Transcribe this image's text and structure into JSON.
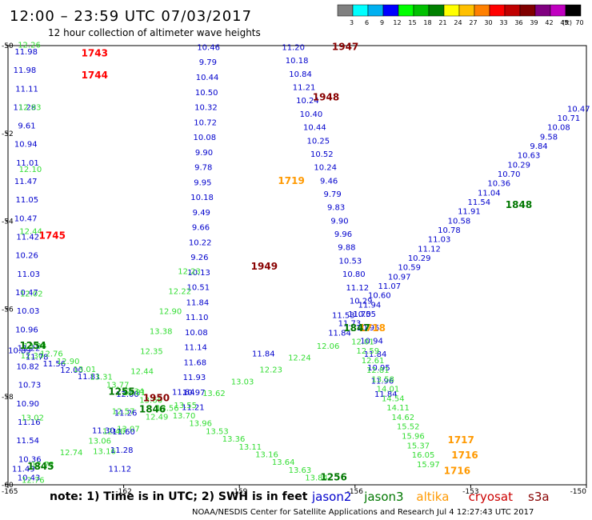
{
  "header": {
    "title": "12:00 – 23:59 UTC 07/03/2017",
    "subtitle": "12 hour collection of altimeter wave heights"
  },
  "colorbar": {
    "unit": "(ft)",
    "levels": [
      {
        "label": "3",
        "color": "#808080"
      },
      {
        "label": "6",
        "color": "#00ffff"
      },
      {
        "label": "9",
        "color": "#00b0f0"
      },
      {
        "label": "12",
        "color": "#0000ff"
      },
      {
        "label": "15",
        "color": "#00ff00"
      },
      {
        "label": "18",
        "color": "#00c000"
      },
      {
        "label": "21",
        "color": "#008000"
      },
      {
        "label": "24",
        "color": "#ffff00"
      },
      {
        "label": "27",
        "color": "#ffc000"
      },
      {
        "label": "30",
        "color": "#ff8000"
      },
      {
        "label": "33",
        "color": "#ff0000"
      },
      {
        "label": "36",
        "color": "#c00000"
      },
      {
        "label": "39",
        "color": "#800000"
      },
      {
        "label": "42",
        "color": "#800080"
      },
      {
        "label": "45",
        "color": "#c000c0"
      },
      {
        "label": "70",
        "color": "#000000"
      }
    ]
  },
  "map": {
    "lon_range": [
      -165,
      -150
    ],
    "lat_range": [
      -60,
      -50
    ],
    "x_ticks": [
      "-165",
      "-162",
      "-159",
      "-156",
      "-153",
      "-150"
    ],
    "y_ticks": [
      "-50",
      "-52",
      "-54",
      "-56",
      "-58",
      "-60"
    ]
  },
  "satellites": [
    {
      "name": "jason2",
      "color": "#0000cc"
    },
    {
      "name": "jason3",
      "color": "#007700"
    },
    {
      "name": "altika",
      "color": "#ff9900"
    },
    {
      "name": "cryosat",
      "color": "#cc0000"
    },
    {
      "name": "s3a",
      "color": "#880000"
    }
  ],
  "times": [
    {
      "label": "1743",
      "lon": -163.1,
      "lat": -50.25,
      "color": "#ff0000"
    },
    {
      "label": "1744",
      "lon": -163.1,
      "lat": -50.75,
      "color": "#ff0000"
    },
    {
      "label": "1745",
      "lon": -164.2,
      "lat": -54.4,
      "color": "#ff0000"
    },
    {
      "label": "1947",
      "lon": -156.6,
      "lat": -50.1,
      "color": "#880000"
    },
    {
      "label": "1948",
      "lon": -157.1,
      "lat": -51.25,
      "color": "#880000"
    },
    {
      "label": "1949",
      "lon": -158.7,
      "lat": -55.1,
      "color": "#880000"
    },
    {
      "label": "1950",
      "lon": -161.5,
      "lat": -58.1,
      "color": "#880000"
    },
    {
      "label": "1719",
      "lon": -158.0,
      "lat": -53.15,
      "color": "#ff9900"
    },
    {
      "label": "1718",
      "lon": -155.9,
      "lat": -56.5,
      "color": "#ff9900"
    },
    {
      "label": "1717",
      "lon": -153.6,
      "lat": -59.05,
      "color": "#ff9900"
    },
    {
      "label": "1716",
      "lon": -153.5,
      "lat": -59.4,
      "color": "#ff9900"
    },
    {
      "label": "1716",
      "lon": -153.7,
      "lat": -59.75,
      "color": "#ff9900"
    },
    {
      "label": "1848",
      "lon": -152.1,
      "lat": -53.7,
      "color": "#007700"
    },
    {
      "label": "1847",
      "lon": -156.3,
      "lat": -56.5,
      "color": "#007700"
    },
    {
      "label": "1846",
      "lon": -161.6,
      "lat": -58.35,
      "color": "#007700"
    },
    {
      "label": "1845",
      "lon": -164.5,
      "lat": -59.65,
      "color": "#007700"
    },
    {
      "label": "1255",
      "lon": -162.4,
      "lat": -57.95,
      "color": "#007700"
    },
    {
      "label": "1254",
      "lon": -164.7,
      "lat": -56.9,
      "color": "#007700"
    },
    {
      "label": "1256",
      "lon": -156.9,
      "lat": -59.9,
      "color": "#007700"
    }
  ],
  "tracks": [
    {
      "satellite": "jason2",
      "color": "#0000cc",
      "start": [
        -164.55,
        -50.2
      ],
      "end": [
        -164.45,
        -59.9
      ],
      "values": [
        "11.98",
        "11.98",
        "11.11",
        "11.28",
        "9.61",
        "10.94",
        "11.01",
        "11.47",
        "11.05",
        "10.47",
        "11.42",
        "10.26",
        "11.03",
        "10.47",
        "10.03",
        "10.96",
        "11.22",
        "10.82",
        "10.73",
        "10.90",
        "11.16",
        "11.54",
        "10.36",
        "10.43"
      ],
      "offsets": [
        0.02,
        -0.02,
        0.03,
        -0.03,
        0.02,
        -0.01,
        0.03,
        -0.02,
        0.01,
        -0.03,
        0.02,
        -0.01,
        0.03,
        -0.02,
        0.01,
        -0.03,
        0.02,
        -0.01,
        0.03,
        -0.02,
        0.01,
        -0.03,
        0.02,
        -0.01
      ]
    },
    {
      "satellite": "jason3",
      "color": "#33dd33",
      "start": [
        -164.45,
        -50.05
      ],
      "end": [
        -164.35,
        -59.95
      ],
      "values": [
        "12.26",
        "12.93",
        "12.10",
        "12.44",
        "12.02",
        "12.30",
        "13.02",
        "12.76"
      ],
      "offsets": [
        0,
        0,
        0,
        0,
        0,
        0,
        0,
        0
      ]
    },
    {
      "satellite": "jason2",
      "color": "#0000cc",
      "start": [
        -159.8,
        -50.1
      ],
      "end": [
        -160.2,
        -58.3
      ],
      "values": [
        "10.46",
        "9.79",
        "10.44",
        "10.50",
        "10.32",
        "10.72",
        "10.08",
        "9.90",
        "9.78",
        "9.95",
        "10.18",
        "9.49",
        "9.66",
        "10.22",
        "9.26",
        "10.13",
        "10.51",
        "11.84",
        "11.10",
        "10.08",
        "11.14",
        "11.68",
        "11.93",
        "10.97",
        "11.21"
      ],
      "offsets": [
        0,
        0,
        0,
        0,
        0,
        0,
        0,
        0,
        0,
        0,
        0,
        0,
        0,
        0,
        0,
        0,
        0,
        0,
        0,
        0,
        0,
        0,
        0,
        0,
        0
      ]
    },
    {
      "satellite": "jason2",
      "color": "#0000cc",
      "start": [
        -157.6,
        -50.1
      ],
      "end": [
        -155.2,
        -58.0
      ],
      "values": [
        "11.20",
        "10.18",
        "10.84",
        "11.21",
        "10.24",
        "10.40",
        "10.44",
        "10.25",
        "10.52",
        "10.24",
        "9.46",
        "9.79",
        "9.83",
        "9.90",
        "9.96",
        "9.88",
        "10.53",
        "10.80",
        "11.12",
        "10.29",
        "10.55",
        "10.95",
        "10.94",
        "11.84",
        "10.95",
        "11.96",
        "11.84"
      ],
      "offsets": [
        0,
        0,
        0,
        0,
        0,
        0,
        0,
        0,
        0,
        0,
        0,
        0,
        0,
        0,
        0,
        0,
        0,
        0,
        0,
        0,
        0,
        0,
        0,
        0,
        0,
        0,
        0
      ]
    },
    {
      "satellite": "jason2",
      "color": "#0000cc",
      "start": [
        -150.2,
        -51.5
      ],
      "end": [
        -156.4,
        -56.6
      ],
      "values": [
        "10.47",
        "10.71",
        "10.08",
        "9.58",
        "9.84",
        "10.63",
        "10.29",
        "10.70",
        "10.36",
        "11.04",
        "11.54",
        "11.91",
        "10.58",
        "10.78",
        "11.03",
        "11.12",
        "10.29",
        "10.59",
        "10.97",
        "11.07",
        "10.60",
        "11.94",
        "11.70",
        "11.73",
        "11.84"
      ],
      "offsets": [
        0,
        0,
        0,
        0,
        0,
        0,
        0,
        0,
        0,
        0,
        0,
        0,
        0,
        0,
        0,
        0,
        0,
        0,
        0,
        0,
        0,
        0,
        0,
        0,
        0
      ]
    },
    {
      "satellite": "jason3",
      "color": "#33dd33",
      "start": [
        -160.3,
        -55.2
      ],
      "end": [
        -162.5,
        -59.3
      ],
      "values": [
        "12.23",
        "12.22",
        "12.90",
        "13.38",
        "12.35",
        "12.44",
        "12.34",
        "12.57",
        "12.40",
        "13.16"
      ],
      "offsets": [
        0,
        0,
        0,
        0,
        0,
        0,
        0,
        0,
        0,
        0
      ]
    },
    {
      "satellite": "jason3",
      "color": "#33dd33",
      "start": [
        -155.8,
        -56.8
      ],
      "end": [
        -154.1,
        -59.6
      ],
      "values": [
        "12.01",
        "12.59",
        "12.61",
        "12.81",
        "13.58",
        "14.01",
        "14.54",
        "14.11",
        "14.62",
        "15.52",
        "15.96",
        "15.37",
        "16.05",
        "15.97"
      ],
      "offsets": [
        0,
        0,
        0,
        0,
        0,
        0,
        0,
        0,
        0,
        0,
        0,
        0,
        0,
        0
      ]
    },
    {
      "satellite": "jason3",
      "color": "#33dd33",
      "start": [
        -156.7,
        -56.9
      ],
      "end": [
        -164.1,
        -59.6
      ],
      "values": [
        "12.06",
        "12.24",
        "12.23",
        "13.03",
        "13.62",
        "13.55",
        "12.49",
        "13.07",
        "13.06",
        "12.74",
        "12.72"
      ],
      "offsets": [
        0,
        0,
        0,
        0,
        0,
        0,
        0,
        0,
        0,
        0,
        0
      ]
    },
    {
      "satellite": "jason2",
      "color": "#0000cc",
      "start": [
        -161.9,
        -58.0
      ],
      "end": [
        -162.1,
        -59.7
      ],
      "values": [
        "12.00",
        "11.26",
        "11.60",
        "11.28",
        "11.12"
      ],
      "offsets": [
        0,
        0,
        0,
        0,
        0
      ]
    },
    {
      "satellite": "jason2",
      "color": "#0000cc",
      "start": [
        -156.3,
        -56.2
      ],
      "end": [
        -164.6,
        -59.7
      ],
      "values": [
        "11.53",
        "11.84",
        "11.84",
        "11.30",
        "11.49"
      ],
      "offsets": [
        0,
        0,
        0,
        0,
        0
      ]
    },
    {
      "satellite": "jason2",
      "color": "#0000cc",
      "start": [
        -164.7,
        -57.0
      ],
      "end": [
        -162.9,
        -57.6
      ],
      "values": [
        "10.89",
        "11.78",
        "11.56",
        "12.00",
        "11.81"
      ],
      "offsets": [
        0,
        0,
        0,
        0,
        0
      ]
    },
    {
      "satellite": "jason3",
      "color": "#33dd33",
      "start": [
        -164.3,
        -56.9
      ],
      "end": [
        -157.0,
        -59.9
      ],
      "values": [
        "13.38",
        "12.76",
        "12.90",
        "13.01",
        "13.31",
        "13.77",
        "13.81",
        "13.66",
        "13.56",
        "13.70",
        "13.96",
        "13.53",
        "13.36",
        "13.11",
        "13.16",
        "13.64",
        "13.63",
        "13.84"
      ],
      "offsets": [
        0,
        0,
        0,
        0,
        0,
        0,
        0,
        0,
        0,
        0,
        0,
        0,
        0,
        0,
        0,
        0,
        0,
        0
      ]
    }
  ],
  "footer": {
    "note": "note:  1) Time is in UTC;  2) SWH is in feet",
    "credit": "NOAA/NESDIS Center for Satellite Applications and Research    Jul  4 12:27:43 UTC 2017"
  }
}
